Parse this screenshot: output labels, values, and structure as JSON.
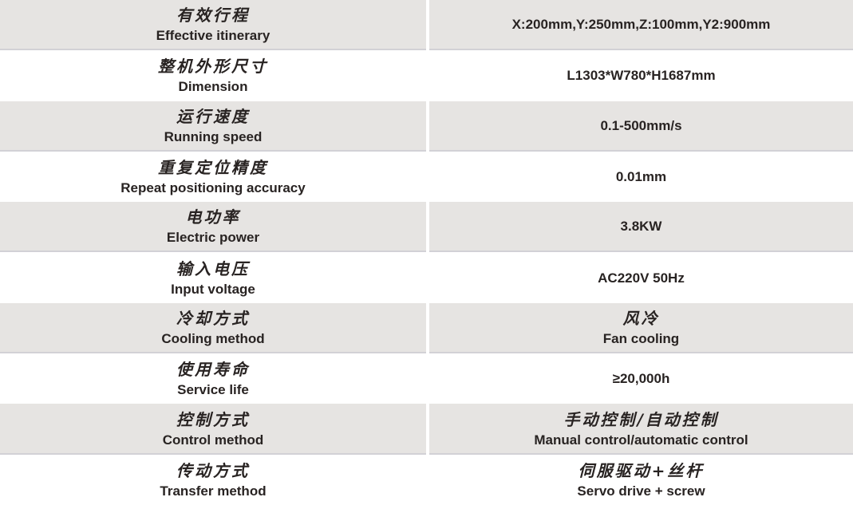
{
  "table": {
    "colors": {
      "row_alt_bg": "#e6e4e2",
      "row_border": "#d2d1d6",
      "text": "#282322",
      "background": "#ffffff"
    },
    "rows": [
      {
        "label_zh": "有效行程",
        "label_en": "Effective itinerary",
        "value_zh": "",
        "value_en": "X:200mm,Y:250mm,Z:100mm,Y2:900mm"
      },
      {
        "label_zh": "整机外形尺寸",
        "label_en": "Dimension",
        "value_zh": "",
        "value_en": "L1303*W780*H1687mm"
      },
      {
        "label_zh": "运行速度",
        "label_en": "Running speed",
        "value_zh": "",
        "value_en": "0.1-500mm/s"
      },
      {
        "label_zh": "重复定位精度",
        "label_en": "Repeat positioning accuracy",
        "value_zh": "",
        "value_en": "0.01mm"
      },
      {
        "label_zh": "电功率",
        "label_en": "Electric power",
        "value_zh": "",
        "value_en": "3.8KW"
      },
      {
        "label_zh": "输入电压",
        "label_en": "Input voltage",
        "value_zh": "",
        "value_en": "AC220V 50Hz"
      },
      {
        "label_zh": "冷却方式",
        "label_en": "Cooling method",
        "value_zh": "风冷",
        "value_en": "Fan cooling"
      },
      {
        "label_zh": "使用寿命",
        "label_en": "Service life",
        "value_zh": "",
        "value_en": "≥20,000h"
      },
      {
        "label_zh": "控制方式",
        "label_en": "Control method",
        "value_zh": "手动控制/自动控制",
        "value_en": "Manual control/automatic control"
      },
      {
        "label_zh": "传动方式",
        "label_en": "Transfer method",
        "value_zh": "伺服驱动+丝杆",
        "value_en": "Servo drive + screw"
      }
    ]
  }
}
